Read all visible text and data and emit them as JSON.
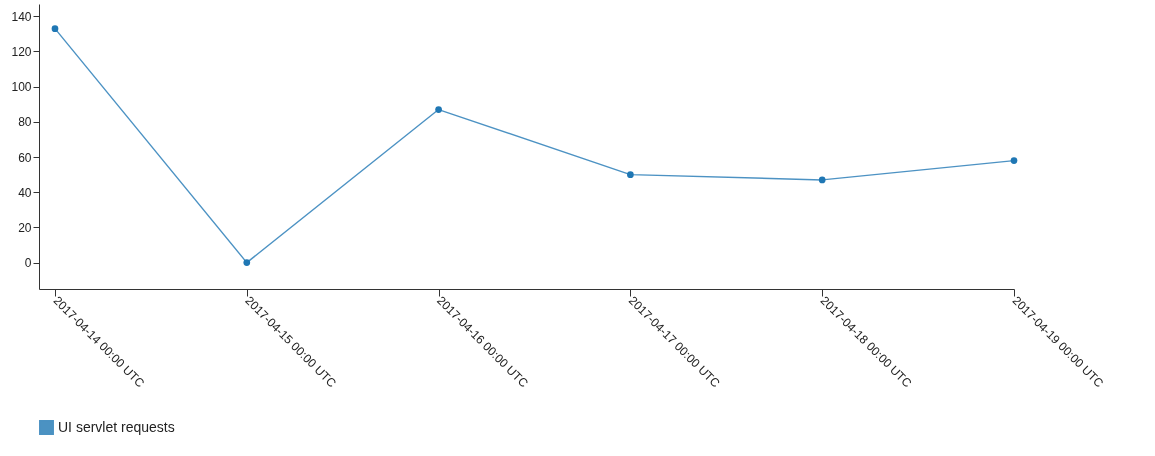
{
  "chart_data": {
    "type": "line",
    "x": [
      "2017-04-14",
      "2017-04-15",
      "2017-04-16",
      "2017-04-17",
      "2017-04-18",
      "2017-04-19"
    ],
    "series": [
      {
        "name": "UI servlet requests",
        "color": "#1f77b4",
        "values": [
          133,
          0,
          87,
          50,
          47,
          58
        ]
      }
    ],
    "xlim": [
      "2017-04-13T22:00",
      "2017-04-19"
    ],
    "xticks": [
      {
        "value": "2017-04-14",
        "label": "2017-04-14 00:00 UTC"
      },
      {
        "value": "2017-04-15",
        "label": "2017-04-15 00:00 UTC"
      },
      {
        "value": "2017-04-16",
        "label": "2017-04-16 00:00 UTC"
      },
      {
        "value": "2017-04-17",
        "label": "2017-04-17 00:00 UTC"
      },
      {
        "value": "2017-04-18",
        "label": "2017-04-18 00:00 UTC"
      },
      {
        "value": "2017-04-19",
        "label": "2017-04-19 00:00 UTC"
      }
    ],
    "ylim": [
      -15,
      147
    ],
    "yticks": [
      0,
      20,
      40,
      60,
      80,
      100,
      120,
      140
    ],
    "grid": false,
    "legend": "bottom",
    "marker": "circle"
  }
}
